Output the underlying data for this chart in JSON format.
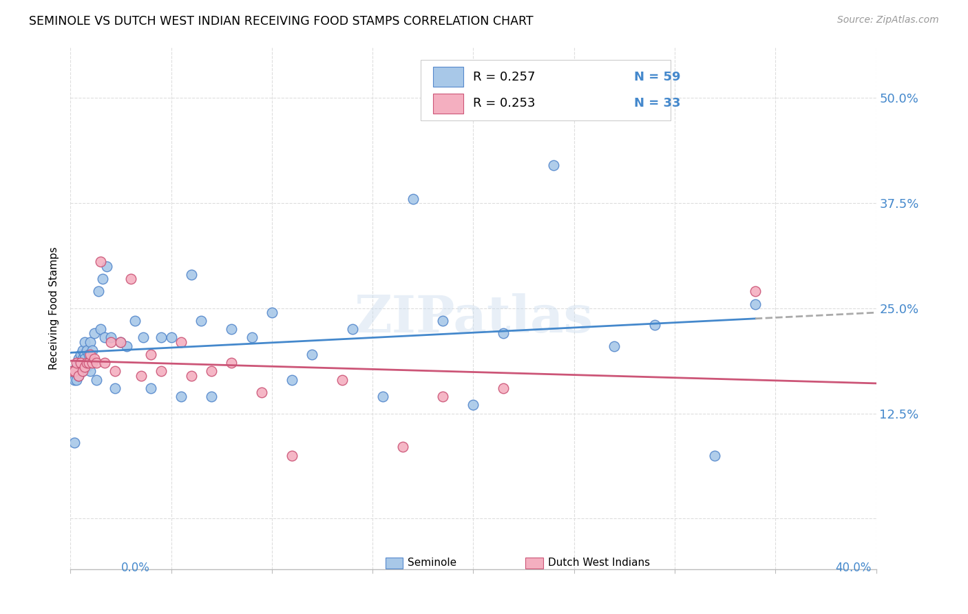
{
  "title": "SEMINOLE VS DUTCH WEST INDIAN RECEIVING FOOD STAMPS CORRELATION CHART",
  "source": "Source: ZipAtlas.com",
  "ylabel": "Receiving Food Stamps",
  "ytick_labels": [
    "",
    "12.5%",
    "25.0%",
    "37.5%",
    "50.0%"
  ],
  "ytick_values": [
    0.0,
    0.125,
    0.25,
    0.375,
    0.5
  ],
  "xmin": 0.0,
  "xmax": 0.4,
  "ymin": -0.06,
  "ymax": 0.56,
  "seminole_color": "#a8c8e8",
  "dutch_color": "#f4afc0",
  "seminole_edge": "#5588cc",
  "dutch_edge": "#cc5577",
  "trend_seminole_color": "#4488cc",
  "trend_dutch_color": "#cc5577",
  "trend_ext_color": "#aaaaaa",
  "watermark": "ZIPatlas",
  "seminole_x": [
    0.001,
    0.002,
    0.002,
    0.003,
    0.003,
    0.004,
    0.004,
    0.005,
    0.005,
    0.005,
    0.006,
    0.006,
    0.006,
    0.007,
    0.007,
    0.007,
    0.008,
    0.008,
    0.009,
    0.009,
    0.01,
    0.01,
    0.011,
    0.012,
    0.013,
    0.014,
    0.015,
    0.016,
    0.017,
    0.018,
    0.02,
    0.022,
    0.025,
    0.028,
    0.032,
    0.036,
    0.04,
    0.045,
    0.05,
    0.055,
    0.06,
    0.065,
    0.07,
    0.08,
    0.09,
    0.1,
    0.11,
    0.12,
    0.14,
    0.155,
    0.17,
    0.185,
    0.2,
    0.215,
    0.24,
    0.27,
    0.29,
    0.32,
    0.34
  ],
  "seminole_y": [
    0.175,
    0.09,
    0.165,
    0.165,
    0.18,
    0.17,
    0.19,
    0.195,
    0.185,
    0.18,
    0.19,
    0.2,
    0.175,
    0.21,
    0.195,
    0.19,
    0.2,
    0.18,
    0.195,
    0.185,
    0.21,
    0.175,
    0.2,
    0.22,
    0.165,
    0.27,
    0.225,
    0.285,
    0.215,
    0.3,
    0.215,
    0.155,
    0.21,
    0.205,
    0.235,
    0.215,
    0.155,
    0.215,
    0.215,
    0.145,
    0.29,
    0.235,
    0.145,
    0.225,
    0.215,
    0.245,
    0.165,
    0.195,
    0.225,
    0.145,
    0.38,
    0.235,
    0.135,
    0.22,
    0.42,
    0.205,
    0.23,
    0.075,
    0.255
  ],
  "dutch_x": [
    0.001,
    0.002,
    0.003,
    0.004,
    0.005,
    0.006,
    0.007,
    0.008,
    0.009,
    0.01,
    0.011,
    0.012,
    0.013,
    0.015,
    0.017,
    0.02,
    0.022,
    0.025,
    0.03,
    0.035,
    0.04,
    0.045,
    0.055,
    0.06,
    0.07,
    0.08,
    0.095,
    0.11,
    0.135,
    0.165,
    0.185,
    0.215,
    0.34
  ],
  "dutch_y": [
    0.175,
    0.175,
    0.185,
    0.17,
    0.185,
    0.175,
    0.18,
    0.185,
    0.185,
    0.195,
    0.185,
    0.19,
    0.185,
    0.305,
    0.185,
    0.21,
    0.175,
    0.21,
    0.285,
    0.17,
    0.195,
    0.175,
    0.21,
    0.17,
    0.175,
    0.185,
    0.15,
    0.075,
    0.165,
    0.085,
    0.145,
    0.155,
    0.27
  ]
}
